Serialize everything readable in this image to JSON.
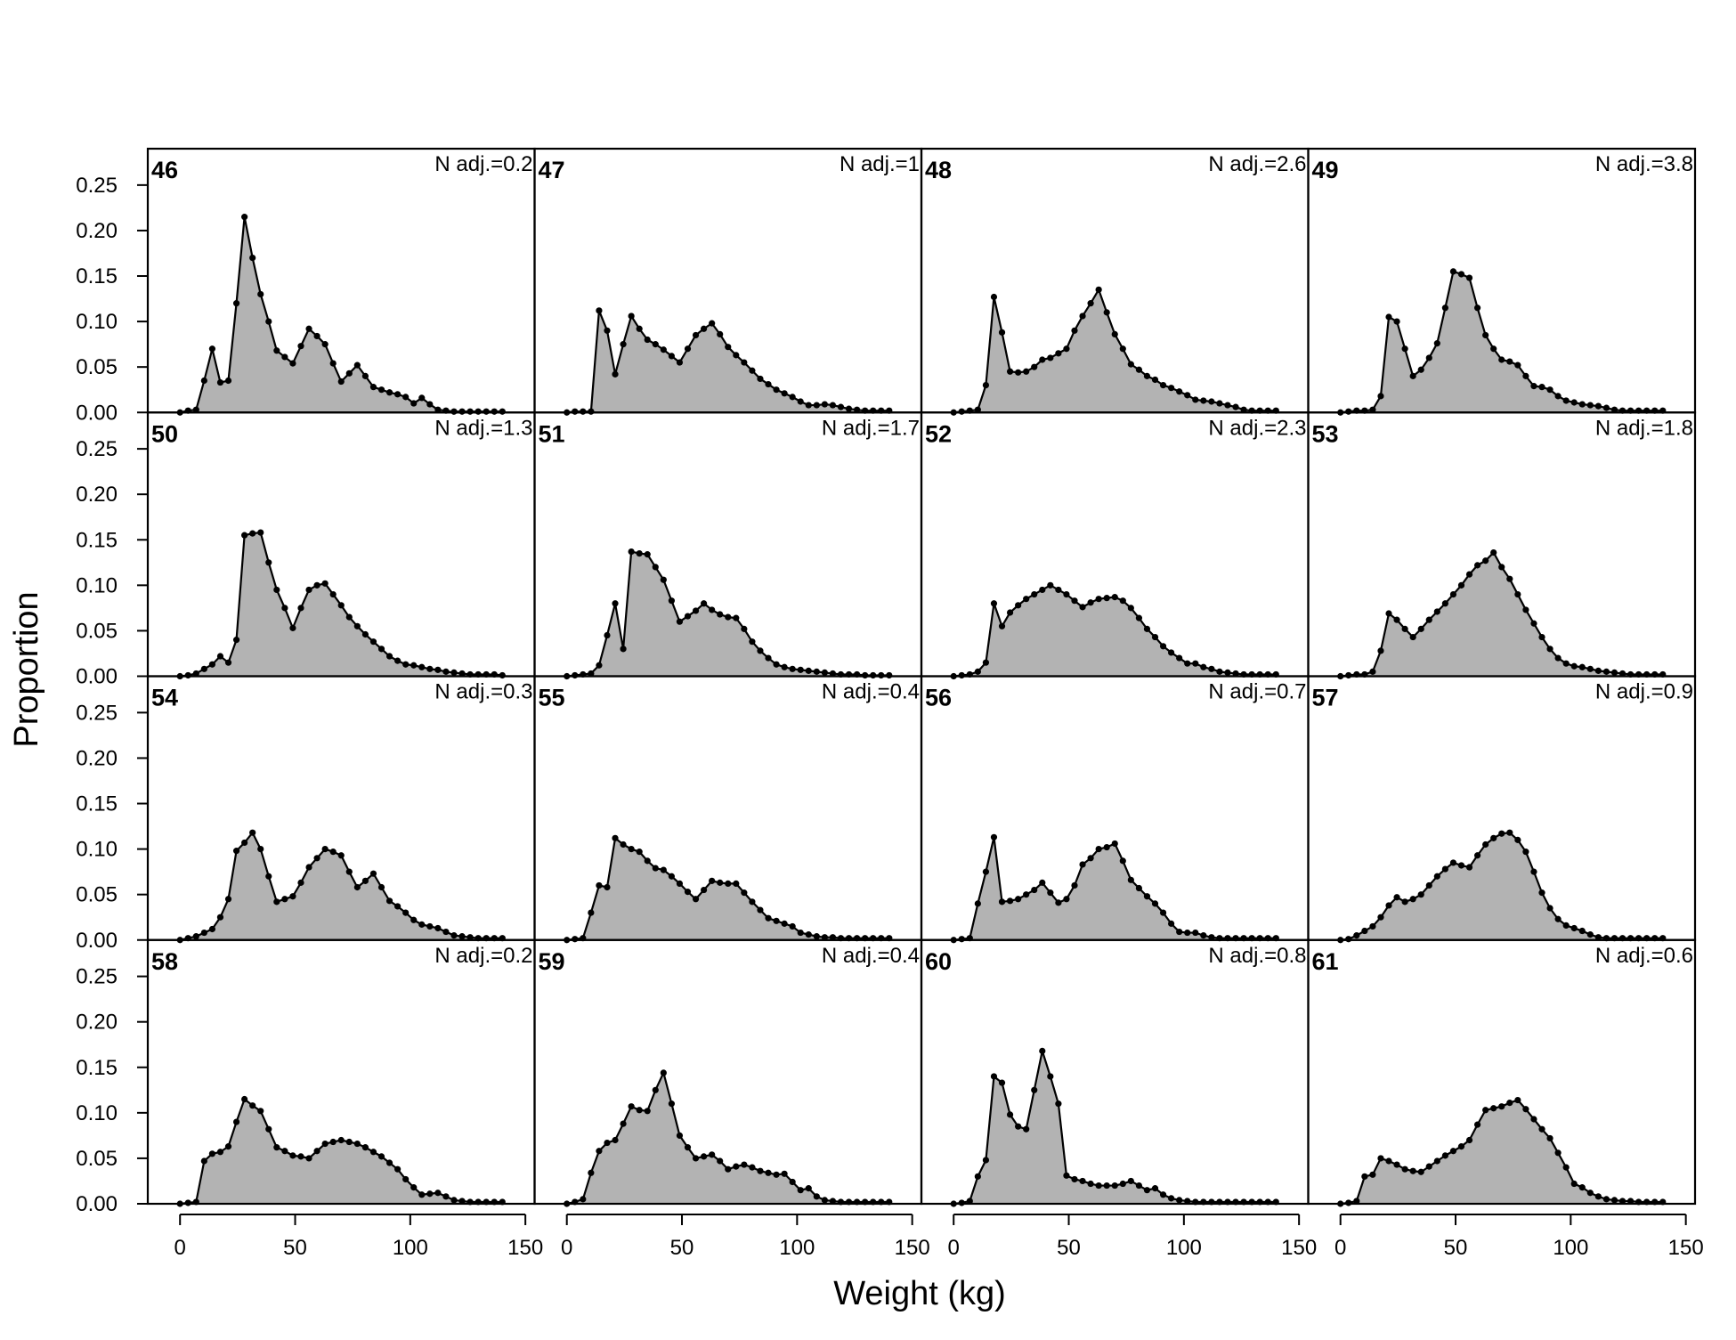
{
  "chart_data": {
    "type": "area",
    "xlabel": "Weight (kg)",
    "ylabel": "Proportion",
    "xlim": [
      -14,
      154
    ],
    "ylim": [
      0,
      0.29
    ],
    "x_ticks": [
      "0",
      "50",
      "100",
      "150"
    ],
    "y_ticks": [
      "0.00",
      "0.05",
      "0.10",
      "0.15",
      "0.20",
      "0.25"
    ],
    "x_tick_values": [
      0,
      50,
      100,
      150
    ],
    "y_tick_values": [
      0,
      0.05,
      0.1,
      0.15,
      0.2,
      0.25
    ],
    "grid": false,
    "fill_color": "#b3b3b3",
    "line_color": "#000000",
    "x": [
      0,
      3.5,
      7,
      10.5,
      14,
      17.5,
      21,
      24.5,
      28,
      31.5,
      35,
      38.5,
      42,
      45.5,
      49,
      52.5,
      56,
      59.5,
      63,
      66.5,
      70,
      73.5,
      77,
      80.5,
      84,
      87.5,
      91,
      94.5,
      98,
      101.5,
      105,
      108.5,
      112,
      115.5,
      119,
      122.5,
      126,
      129.5,
      133,
      136.5,
      140
    ],
    "panels": [
      {
        "id": "46",
        "nadj": "N adj.=0.2",
        "values": [
          0,
          0.002,
          0.003,
          0.035,
          0.07,
          0.033,
          0.035,
          0.12,
          0.215,
          0.17,
          0.13,
          0.1,
          0.068,
          0.061,
          0.054,
          0.073,
          0.092,
          0.084,
          0.075,
          0.054,
          0.034,
          0.043,
          0.052,
          0.04,
          0.028,
          0.025,
          0.022,
          0.02,
          0.017,
          0.01,
          0.016,
          0.009,
          0.003,
          0.002,
          0.001,
          0.001,
          0.001,
          0.001,
          0.001,
          0.001,
          0.001
        ]
      },
      {
        "id": "50",
        "nadj": "N adj.=1.3",
        "values": [
          0,
          0.001,
          0.003,
          0.008,
          0.013,
          0.022,
          0.015,
          0.04,
          0.155,
          0.157,
          0.158,
          0.125,
          0.095,
          0.075,
          0.053,
          0.075,
          0.095,
          0.1,
          0.102,
          0.09,
          0.078,
          0.065,
          0.055,
          0.046,
          0.038,
          0.03,
          0.022,
          0.017,
          0.013,
          0.012,
          0.01,
          0.008,
          0.007,
          0.005,
          0.004,
          0.003,
          0.002,
          0.002,
          0.002,
          0.002,
          0.001
        ]
      },
      {
        "id": "54",
        "nadj": "N adj.=0.3",
        "values": [
          0,
          0.002,
          0.004,
          0.008,
          0.012,
          0.025,
          0.045,
          0.098,
          0.107,
          0.118,
          0.1,
          0.07,
          0.042,
          0.045,
          0.048,
          0.063,
          0.08,
          0.09,
          0.1,
          0.097,
          0.093,
          0.075,
          0.058,
          0.065,
          0.073,
          0.058,
          0.043,
          0.037,
          0.03,
          0.022,
          0.017,
          0.015,
          0.013,
          0.009,
          0.005,
          0.004,
          0.003,
          0.002,
          0.002,
          0.002,
          0.002
        ]
      },
      {
        "id": "58",
        "nadj": "N adj.=0.2",
        "values": [
          0,
          0.001,
          0.002,
          0.047,
          0.055,
          0.057,
          0.063,
          0.09,
          0.115,
          0.108,
          0.102,
          0.082,
          0.062,
          0.058,
          0.053,
          0.052,
          0.05,
          0.058,
          0.066,
          0.068,
          0.07,
          0.068,
          0.066,
          0.062,
          0.057,
          0.052,
          0.045,
          0.038,
          0.027,
          0.018,
          0.01,
          0.011,
          0.012,
          0.008,
          0.004,
          0.003,
          0.002,
          0.002,
          0.002,
          0.002,
          0.002
        ]
      },
      {
        "id": "47",
        "nadj": "N adj.=1",
        "values": [
          0,
          0.001,
          0.001,
          0.001,
          0.112,
          0.09,
          0.042,
          0.075,
          0.106,
          0.092,
          0.08,
          0.075,
          0.069,
          0.062,
          0.055,
          0.07,
          0.085,
          0.092,
          0.098,
          0.086,
          0.072,
          0.063,
          0.055,
          0.046,
          0.037,
          0.031,
          0.025,
          0.021,
          0.017,
          0.012,
          0.008,
          0.008,
          0.009,
          0.008,
          0.006,
          0.004,
          0.003,
          0.002,
          0.002,
          0.002,
          0.002
        ]
      },
      {
        "id": "51",
        "nadj": "N adj.=1.7",
        "values": [
          0,
          0.001,
          0.002,
          0.003,
          0.012,
          0.045,
          0.08,
          0.03,
          0.137,
          0.135,
          0.134,
          0.12,
          0.106,
          0.083,
          0.06,
          0.066,
          0.072,
          0.08,
          0.073,
          0.068,
          0.065,
          0.064,
          0.052,
          0.038,
          0.028,
          0.02,
          0.013,
          0.01,
          0.008,
          0.007,
          0.006,
          0.005,
          0.004,
          0.003,
          0.002,
          0.002,
          0.002,
          0.001,
          0.001,
          0.001,
          0.001
        ]
      },
      {
        "id": "55",
        "nadj": "N adj.=0.4",
        "values": [
          0,
          0.001,
          0.002,
          0.03,
          0.06,
          0.058,
          0.112,
          0.105,
          0.1,
          0.097,
          0.087,
          0.079,
          0.077,
          0.07,
          0.062,
          0.053,
          0.045,
          0.055,
          0.065,
          0.063,
          0.062,
          0.062,
          0.052,
          0.042,
          0.033,
          0.024,
          0.021,
          0.018,
          0.015,
          0.008,
          0.006,
          0.004,
          0.003,
          0.003,
          0.002,
          0.002,
          0.002,
          0.002,
          0.002,
          0.002,
          0.002
        ]
      },
      {
        "id": "59",
        "nadj": "N adj.=0.4",
        "values": [
          0,
          0.002,
          0.005,
          0.034,
          0.058,
          0.067,
          0.07,
          0.088,
          0.107,
          0.103,
          0.102,
          0.125,
          0.144,
          0.11,
          0.075,
          0.062,
          0.05,
          0.052,
          0.054,
          0.047,
          0.038,
          0.041,
          0.043,
          0.04,
          0.036,
          0.034,
          0.032,
          0.033,
          0.024,
          0.015,
          0.017,
          0.008,
          0.004,
          0.003,
          0.002,
          0.002,
          0.002,
          0.002,
          0.002,
          0.002,
          0.002
        ]
      },
      {
        "id": "48",
        "nadj": "N adj.=2.6",
        "values": [
          0,
          0.001,
          0.002,
          0.003,
          0.03,
          0.127,
          0.088,
          0.045,
          0.044,
          0.045,
          0.05,
          0.058,
          0.06,
          0.065,
          0.07,
          0.09,
          0.106,
          0.12,
          0.135,
          0.11,
          0.086,
          0.07,
          0.053,
          0.047,
          0.04,
          0.036,
          0.03,
          0.027,
          0.023,
          0.019,
          0.014,
          0.013,
          0.012,
          0.01,
          0.008,
          0.006,
          0.003,
          0.002,
          0.002,
          0.002,
          0.002
        ]
      },
      {
        "id": "52",
        "nadj": "N adj.=2.3",
        "values": [
          0,
          0.001,
          0.002,
          0.005,
          0.015,
          0.08,
          0.055,
          0.07,
          0.078,
          0.085,
          0.09,
          0.095,
          0.1,
          0.095,
          0.09,
          0.083,
          0.076,
          0.081,
          0.085,
          0.086,
          0.087,
          0.083,
          0.075,
          0.064,
          0.052,
          0.043,
          0.033,
          0.026,
          0.02,
          0.014,
          0.014,
          0.01,
          0.008,
          0.005,
          0.004,
          0.003,
          0.002,
          0.002,
          0.002,
          0.002,
          0.002
        ]
      },
      {
        "id": "56",
        "nadj": "N adj.=0.7",
        "values": [
          0,
          0.001,
          0.002,
          0.04,
          0.075,
          0.113,
          0.042,
          0.043,
          0.045,
          0.05,
          0.055,
          0.063,
          0.052,
          0.041,
          0.045,
          0.06,
          0.083,
          0.09,
          0.1,
          0.102,
          0.106,
          0.087,
          0.066,
          0.057,
          0.048,
          0.04,
          0.03,
          0.018,
          0.009,
          0.008,
          0.008,
          0.005,
          0.003,
          0.002,
          0.002,
          0.002,
          0.002,
          0.002,
          0.002,
          0.002,
          0.002
        ]
      },
      {
        "id": "60",
        "nadj": "N adj.=0.8",
        "values": [
          0,
          0.001,
          0.003,
          0.03,
          0.048,
          0.14,
          0.133,
          0.098,
          0.085,
          0.082,
          0.125,
          0.168,
          0.14,
          0.11,
          0.031,
          0.027,
          0.025,
          0.022,
          0.02,
          0.02,
          0.02,
          0.022,
          0.025,
          0.02,
          0.015,
          0.017,
          0.01,
          0.006,
          0.004,
          0.003,
          0.002,
          0.002,
          0.002,
          0.002,
          0.002,
          0.002,
          0.002,
          0.002,
          0.002,
          0.002,
          0.002
        ]
      },
      {
        "id": "49",
        "nadj": "N adj.=3.8",
        "values": [
          0,
          0.001,
          0.002,
          0.002,
          0.003,
          0.018,
          0.105,
          0.1,
          0.07,
          0.04,
          0.047,
          0.06,
          0.076,
          0.115,
          0.155,
          0.152,
          0.148,
          0.115,
          0.085,
          0.07,
          0.058,
          0.056,
          0.052,
          0.04,
          0.029,
          0.028,
          0.025,
          0.018,
          0.013,
          0.011,
          0.009,
          0.008,
          0.007,
          0.005,
          0.003,
          0.002,
          0.002,
          0.002,
          0.002,
          0.002,
          0.002
        ]
      },
      {
        "id": "53",
        "nadj": "N adj.=1.8",
        "values": [
          0,
          0.001,
          0.002,
          0.002,
          0.005,
          0.028,
          0.069,
          0.062,
          0.052,
          0.043,
          0.052,
          0.062,
          0.071,
          0.08,
          0.09,
          0.1,
          0.112,
          0.122,
          0.127,
          0.136,
          0.12,
          0.107,
          0.09,
          0.073,
          0.058,
          0.043,
          0.03,
          0.02,
          0.014,
          0.011,
          0.01,
          0.008,
          0.006,
          0.005,
          0.004,
          0.003,
          0.002,
          0.002,
          0.002,
          0.002,
          0.002
        ]
      },
      {
        "id": "57",
        "nadj": "N adj.=0.9",
        "values": [
          0,
          0.001,
          0.005,
          0.01,
          0.015,
          0.025,
          0.038,
          0.047,
          0.042,
          0.045,
          0.05,
          0.06,
          0.07,
          0.078,
          0.085,
          0.082,
          0.08,
          0.093,
          0.105,
          0.112,
          0.117,
          0.118,
          0.11,
          0.097,
          0.075,
          0.052,
          0.035,
          0.023,
          0.016,
          0.013,
          0.01,
          0.006,
          0.003,
          0.002,
          0.002,
          0.002,
          0.002,
          0.002,
          0.002,
          0.002,
          0.002
        ]
      },
      {
        "id": "61",
        "nadj": "N adj.=0.6",
        "values": [
          0,
          0.001,
          0.003,
          0.03,
          0.032,
          0.05,
          0.047,
          0.043,
          0.038,
          0.036,
          0.035,
          0.041,
          0.047,
          0.053,
          0.058,
          0.063,
          0.07,
          0.087,
          0.103,
          0.105,
          0.107,
          0.111,
          0.114,
          0.104,
          0.093,
          0.082,
          0.072,
          0.056,
          0.04,
          0.022,
          0.018,
          0.012,
          0.008,
          0.005,
          0.004,
          0.003,
          0.003,
          0.002,
          0.002,
          0.002,
          0.002
        ]
      }
    ]
  }
}
